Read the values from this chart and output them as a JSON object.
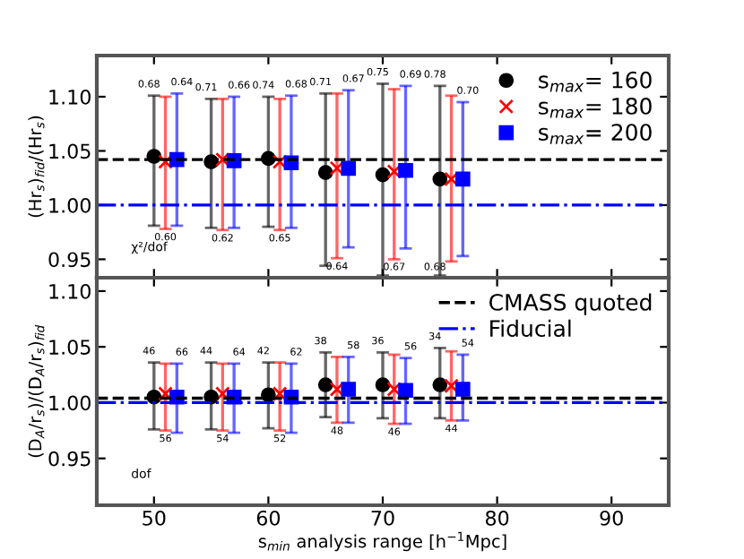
{
  "chart_data": [
    {
      "type": "scatter",
      "ylabel": "(Hr$_{s}$)$_{fid}$/(Hr$_{s}$)",
      "xlim": [
        45,
        95
      ],
      "xticks": [
        50,
        60,
        70,
        80,
        90
      ],
      "ylim": [
        0.933,
        1.138
      ],
      "yticks": [
        {
          "value": 0.95,
          "label": "0.95"
        },
        {
          "value": 1.0,
          "label": "1.00"
        },
        {
          "value": 1.05,
          "label": "1.05"
        },
        {
          "value": 1.1,
          "label": "1.10"
        }
      ],
      "tick_labels": "y",
      "grid": false,
      "legend": "top right",
      "series": [
        {
          "name": "s$_{max}$= 160",
          "color": "#000000",
          "marker": "circle",
          "x": [
            50,
            55,
            60,
            65,
            70,
            75
          ],
          "values": [
            1.045,
            1.04,
            1.043,
            1.03,
            1.028,
            1.024
          ],
          "errors": [
            [
              0.981,
              1.101
            ],
            [
              0.979,
              1.098
            ],
            [
              0.98,
              1.1
            ],
            [
              0.944,
              1.103
            ],
            [
              0.935,
              1.112
            ],
            [
              0.935,
              1.11
            ]
          ]
        },
        {
          "name": "s$_{max}$= 180",
          "color": "#ff0000",
          "marker": "cross",
          "x": [
            51,
            56,
            61,
            66,
            71,
            76
          ],
          "values": [
            1.04,
            1.042,
            1.04,
            1.034,
            1.031,
            1.024
          ],
          "errors": [
            [
              0.978,
              1.1
            ],
            [
              0.977,
              1.098
            ],
            [
              0.977,
              1.098
            ],
            [
              0.951,
              1.103
            ],
            [
              0.95,
              1.107
            ],
            [
              0.948,
              1.101
            ]
          ]
        },
        {
          "name": "s$_{max}$= 200",
          "color": "#0000ff",
          "marker": "square",
          "x": [
            52,
            57,
            62,
            67,
            72,
            77
          ],
          "values": [
            1.042,
            1.041,
            1.039,
            1.034,
            1.032,
            1.024
          ],
          "errors": [
            [
              0.981,
              1.103
            ],
            [
              0.979,
              1.1
            ],
            [
              0.979,
              1.101
            ],
            [
              0.961,
              1.106
            ],
            [
              0.96,
              1.11
            ],
            [
              0.953,
              1.095
            ]
          ]
        }
      ],
      "ref_lines": [
        {
          "axis": "y",
          "value": 1.042,
          "color": "#000000",
          "line_style": "dashed"
        },
        {
          "axis": "y",
          "value": 1.0,
          "color": "#0000ff",
          "line_style": "dashdot"
        }
      ],
      "annotations": [
        "χ²/dof",
        {
          "text": "0.68",
          "x": 50,
          "y": 1.101
        },
        {
          "text": "0.64",
          "x": 52,
          "y": 1.103
        },
        {
          "text": "0.60",
          "x": 51,
          "y": 0.978
        },
        {
          "text": "0.71",
          "x": 55,
          "y": 1.098
        },
        {
          "text": "0.66",
          "x": 57,
          "y": 1.1
        },
        {
          "text": "0.62",
          "x": 56,
          "y": 0.977
        },
        {
          "text": "0.74",
          "x": 60,
          "y": 1.1
        },
        {
          "text": "0.68",
          "x": 62,
          "y": 1.101
        },
        {
          "text": "0.65",
          "x": 61,
          "y": 0.977
        },
        {
          "text": "0.71",
          "x": 65,
          "y": 1.103
        },
        {
          "text": "0.67",
          "x": 67,
          "y": 1.106
        },
        {
          "text": "0.64",
          "x": 66,
          "y": 0.951
        },
        {
          "text": "0.75",
          "x": 70,
          "y": 1.112
        },
        {
          "text": "0.69",
          "x": 72,
          "y": 1.11
        },
        {
          "text": "0.67",
          "x": 71,
          "y": 0.95
        },
        {
          "text": "0.78",
          "x": 75,
          "y": 1.11
        },
        {
          "text": "0.70",
          "x": 77,
          "y": 1.095
        },
        {
          "text": "0.68",
          "x": 75,
          "y": 0.935
        }
      ]
    },
    {
      "type": "scatter",
      "xlabel": "s$_{min}$ analysis range [h$^{−1}$Mpc]",
      "ylabel": "(D$_{A}$/r$_{s}$)/(D$_{A}$/r$_{s}$)$_{fid}$",
      "xlim": [
        45,
        95
      ],
      "xticks": [
        50,
        60,
        70,
        80,
        90
      ],
      "ylim": [
        0.908,
        1.112
      ],
      "yticks": [
        {
          "value": 0.95,
          "label": "0.95"
        },
        {
          "value": 1.0,
          "label": "1.00"
        },
        {
          "value": 1.05,
          "label": "1.05"
        },
        {
          "value": 1.1,
          "label": "1.10"
        }
      ],
      "grid": false,
      "legend": "top right",
      "series": [
        {
          "color": "#000000",
          "marker": "circle",
          "x": [
            50,
            55,
            60,
            65,
            70,
            75
          ],
          "values": [
            1.005,
            1.005,
            1.007,
            1.016,
            1.016,
            1.016
          ],
          "errors": [
            [
              0.976,
              1.036
            ],
            [
              0.976,
              1.036
            ],
            [
              0.977,
              1.036
            ],
            [
              0.987,
              1.045
            ],
            [
              0.986,
              1.045
            ],
            [
              0.986,
              1.049
            ]
          ]
        },
        {
          "color": "#ff0000",
          "marker": "cross",
          "x": [
            51,
            56,
            61,
            66,
            71,
            76
          ],
          "values": [
            1.008,
            1.008,
            1.008,
            1.012,
            1.012,
            1.015
          ],
          "errors": [
            [
              0.975,
              1.035
            ],
            [
              0.975,
              1.035
            ],
            [
              0.975,
              1.036
            ],
            [
              0.982,
              1.041
            ],
            [
              0.981,
              1.043
            ],
            [
              0.984,
              1.046
            ]
          ]
        },
        {
          "color": "#0000ff",
          "marker": "square",
          "x": [
            52,
            57,
            62,
            67,
            72,
            77
          ],
          "values": [
            1.005,
            1.005,
            1.005,
            1.012,
            1.011,
            1.012
          ],
          "errors": [
            [
              0.973,
              1.035
            ],
            [
              0.973,
              1.035
            ],
            [
              0.973,
              1.035
            ],
            [
              0.982,
              1.041
            ],
            [
              0.981,
              1.04
            ],
            [
              0.984,
              1.043
            ]
          ]
        }
      ],
      "ref_lines": [
        {
          "axis": "y",
          "value": 1.004,
          "label": "CMASS quoted",
          "color": "#000000",
          "line_style": "dashed"
        },
        {
          "axis": "y",
          "value": 1.0,
          "label": "Fiducial",
          "color": "#0000ff",
          "line_style": "dashdot"
        }
      ],
      "annotations": [
        "dof",
        {
          "text": "46",
          "x": 50,
          "y": 1.036
        },
        {
          "text": "66",
          "x": 52,
          "y": 1.035
        },
        {
          "text": "56",
          "x": 51,
          "y": 0.975
        },
        {
          "text": "44",
          "x": 55,
          "y": 1.036
        },
        {
          "text": "64",
          "x": 57,
          "y": 1.035
        },
        {
          "text": "54",
          "x": 56,
          "y": 0.975
        },
        {
          "text": "42",
          "x": 60,
          "y": 1.036
        },
        {
          "text": "62",
          "x": 62,
          "y": 1.035
        },
        {
          "text": "52",
          "x": 61,
          "y": 0.975
        },
        {
          "text": "38",
          "x": 65,
          "y": 1.045
        },
        {
          "text": "58",
          "x": 67,
          "y": 1.041
        },
        {
          "text": "48",
          "x": 66,
          "y": 0.982
        },
        {
          "text": "36",
          "x": 70,
          "y": 1.045
        },
        {
          "text": "56",
          "x": 72,
          "y": 1.04
        },
        {
          "text": "46",
          "x": 71,
          "y": 0.981
        },
        {
          "text": "34",
          "x": 75,
          "y": 1.049
        },
        {
          "text": "54",
          "x": 77,
          "y": 1.043
        },
        {
          "text": "44",
          "x": 76,
          "y": 0.984
        }
      ]
    }
  ]
}
